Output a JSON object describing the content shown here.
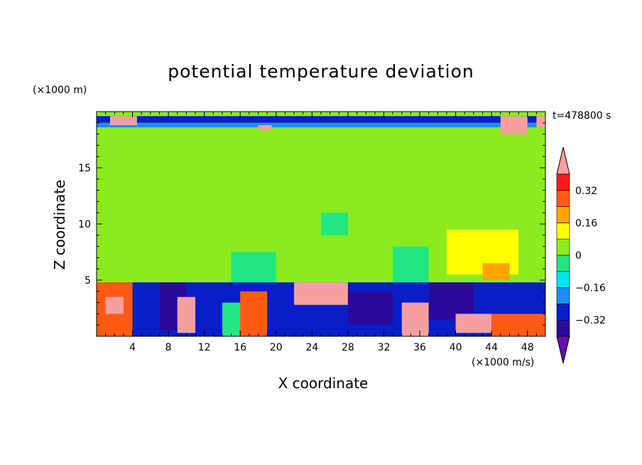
{
  "chart_data": {
    "type": "heatmap",
    "title": "potential temperature deviation",
    "xlabel": "X coordinate",
    "ylabel": "Z coordinate",
    "x_units": "(×1000 m/s)",
    "y_units": "(×1000 m)",
    "time_label": "t=478800 s",
    "xlim": [
      0,
      50
    ],
    "ylim": [
      0,
      20
    ],
    "x_ticks": [
      4,
      8,
      12,
      16,
      20,
      24,
      28,
      32,
      36,
      40,
      44,
      48
    ],
    "y_ticks": [
      5,
      10,
      15
    ],
    "colorbar": {
      "levels": [
        -0.4,
        -0.32,
        -0.24,
        -0.16,
        -0.08,
        0,
        0.08,
        0.16,
        0.24,
        0.32,
        0.4
      ],
      "labels": [
        "0.32",
        "0.16",
        "0",
        "−0.16",
        "−0.32"
      ],
      "label_values": [
        0.32,
        0.16,
        0,
        -0.16,
        -0.32
      ],
      "colors": [
        "#6a0dad",
        "#2a0a9a",
        "#0a1ec8",
        "#1e8cff",
        "#00e6f0",
        "#22e682",
        "#8ceb1e",
        "#ffff00",
        "#ffa500",
        "#ff5a14",
        "#ff1a1a",
        "#f5a0a0"
      ]
    },
    "regions": [
      {
        "x": [
          0,
          50
        ],
        "z": [
          17.5,
          19.6
        ],
        "value": 0.02
      },
      {
        "x": [
          0,
          50
        ],
        "z": [
          19.0,
          19.6
        ],
        "value": -0.3
      },
      {
        "x": [
          0,
          50
        ],
        "z": [
          18.6,
          19.0
        ],
        "value": -0.2
      },
      {
        "x": [
          0,
          50
        ],
        "z": [
          5,
          17.5
        ],
        "value": 0.05
      },
      {
        "x": [
          1,
          15
        ],
        "z": [
          6,
          10
        ],
        "value": 0.02
      },
      {
        "x": [
          15,
          20
        ],
        "z": [
          4.8,
          7.5
        ],
        "value": -0.07
      },
      {
        "x": [
          25,
          28
        ],
        "z": [
          9,
          11
        ],
        "value": -0.07
      },
      {
        "x": [
          33,
          37
        ],
        "z": [
          4.8,
          8
        ],
        "value": -0.07
      },
      {
        "x": [
          39,
          47
        ],
        "z": [
          5.5,
          9.5
        ],
        "value": 0.15
      },
      {
        "x": [
          43,
          46
        ],
        "z": [
          5,
          6.5
        ],
        "value": 0.22
      },
      {
        "x": [
          0,
          50
        ],
        "z": [
          0,
          4.8
        ],
        "value": -0.3
      },
      {
        "x": [
          0,
          4
        ],
        "z": [
          0,
          4.8
        ],
        "value": 0.28
      },
      {
        "x": [
          1,
          3
        ],
        "z": [
          2,
          3.5
        ],
        "value": 0.4
      },
      {
        "x": [
          7,
          10
        ],
        "z": [
          0.5,
          4.8
        ],
        "value": -0.36
      },
      {
        "x": [
          9,
          11
        ],
        "z": [
          0.3,
          3.5
        ],
        "value": 0.4
      },
      {
        "x": [
          14,
          17
        ],
        "z": [
          0,
          3
        ],
        "value": -0.05
      },
      {
        "x": [
          16,
          19
        ],
        "z": [
          0,
          4
        ],
        "value": 0.28
      },
      {
        "x": [
          22,
          28
        ],
        "z": [
          2.8,
          4.8
        ],
        "value": 0.4
      },
      {
        "x": [
          28,
          33
        ],
        "z": [
          1,
          4
        ],
        "value": -0.36
      },
      {
        "x": [
          34,
          37
        ],
        "z": [
          0,
          3
        ],
        "value": 0.4
      },
      {
        "x": [
          37,
          42
        ],
        "z": [
          1.5,
          4.8
        ],
        "value": -0.4
      },
      {
        "x": [
          40,
          44
        ],
        "z": [
          0.3,
          2
        ],
        "value": 0.4
      },
      {
        "x": [
          44,
          50
        ],
        "z": [
          0,
          2
        ],
        "value": 0.28
      },
      {
        "x": [
          1.5,
          4.5
        ],
        "z": [
          18.8,
          19.6
        ],
        "value": 0.4
      },
      {
        "x": [
          18,
          19.5
        ],
        "z": [
          18.4,
          18.8
        ],
        "value": 0.4
      },
      {
        "x": [
          45,
          48
        ],
        "z": [
          18,
          19.6
        ],
        "value": 0.4
      },
      {
        "x": [
          49,
          50
        ],
        "z": [
          18.6,
          19.6
        ],
        "value": 0.4
      }
    ]
  }
}
